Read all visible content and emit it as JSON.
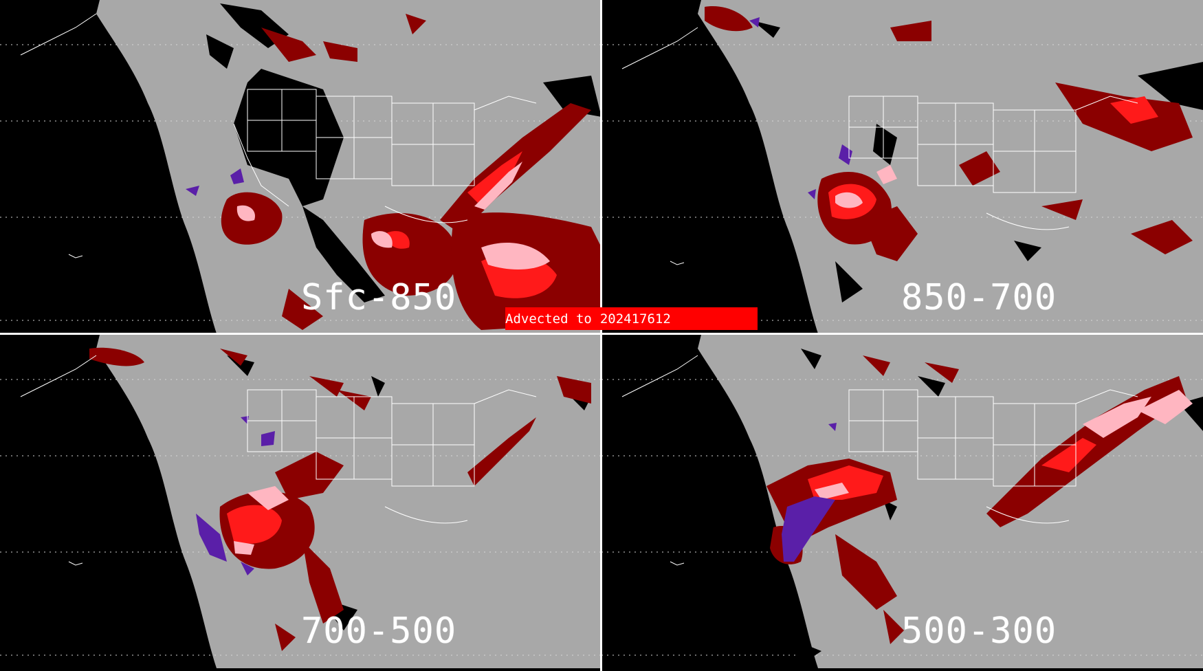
{
  "banner": {
    "prefix": "Advected to",
    "timestamp": "202417612"
  },
  "panels": [
    {
      "id": "sfc-850",
      "label": "Sfc-850"
    },
    {
      "id": "850-700",
      "label": "850-700"
    },
    {
      "id": "700-500",
      "label": "700-500"
    },
    {
      "id": "500-300",
      "label": "500-300"
    }
  ],
  "colors": {
    "space": "#000000",
    "earth_background": "#a8a8a8",
    "no_data": "#000000",
    "category_low": "#8b0000",
    "category_mid": "#ff1a1a",
    "category_high": "#ffb6c1",
    "category_purple": "#5a1fa8",
    "boundaries": "#ffffff",
    "banner": "#ff0000"
  },
  "icons": {
    "boundaries": "state-border-lines",
    "gridlines": "lat-lon-dotted-grid"
  }
}
